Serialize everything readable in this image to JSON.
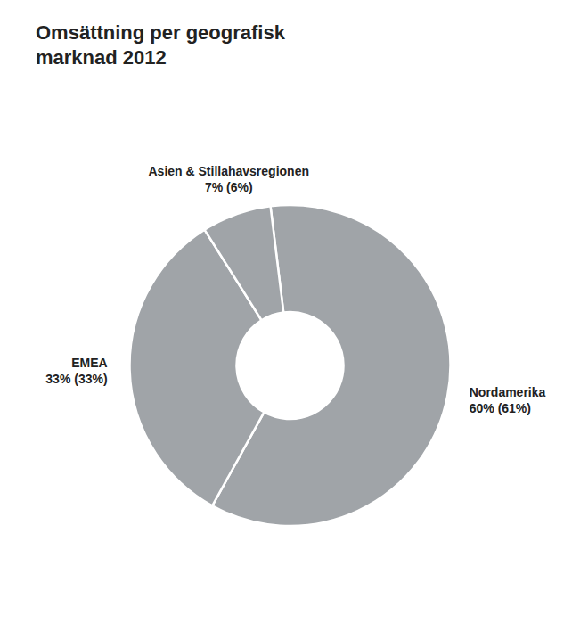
{
  "chart_data": {
    "type": "pie",
    "title": "Omsättning per geografisk\nmarknad 2012",
    "categories": [
      "Nordamerika",
      "EMEA",
      "Asien & Stillahavsregionen"
    ],
    "values": [
      60,
      33,
      7
    ],
    "value_labels": [
      "60% (61%)",
      "33% (33%)",
      "7% (6%)"
    ],
    "data_labels": true,
    "color": "#a0a4a8"
  }
}
